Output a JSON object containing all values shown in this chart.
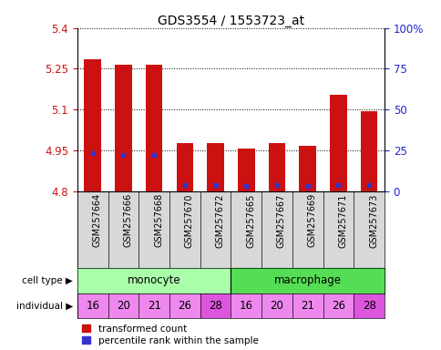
{
  "title": "GDS3554 / 1553723_at",
  "samples": [
    "GSM257664",
    "GSM257666",
    "GSM257668",
    "GSM257670",
    "GSM257672",
    "GSM257665",
    "GSM257667",
    "GSM257669",
    "GSM257671",
    "GSM257673"
  ],
  "bar_values": [
    5.285,
    5.265,
    5.265,
    4.975,
    4.975,
    4.955,
    4.975,
    4.965,
    5.155,
    5.095
  ],
  "blue_values": [
    4.94,
    4.932,
    4.932,
    4.822,
    4.822,
    4.818,
    4.822,
    4.82,
    4.824,
    4.824
  ],
  "y_min": 4.8,
  "y_max": 5.4,
  "y_ticks": [
    4.8,
    4.95,
    5.1,
    5.25,
    5.4
  ],
  "y_tick_labels": [
    "4.8",
    "4.95",
    "5.1",
    "5.25",
    "5.4"
  ],
  "right_y_ticks": [
    0.0,
    0.25,
    0.5,
    0.75,
    1.0
  ],
  "right_y_tick_labels": [
    "0",
    "25",
    "50",
    "75",
    "100%"
  ],
  "bar_color": "#cc1111",
  "blue_color": "#3333cc",
  "monocyte_color": "#aaffaa",
  "macrophage_color": "#55dd55",
  "individuals": [
    "16",
    "20",
    "21",
    "26",
    "28",
    "16",
    "20",
    "21",
    "26",
    "28"
  ],
  "individual_color": "#ee88ee",
  "individual_dark": "#dd55dd",
  "legend_red": "transformed count",
  "legend_blue": "percentile rank within the sample",
  "label_color_left": "#cc1111",
  "label_color_right": "#2222cc",
  "background_color": "#ffffff"
}
